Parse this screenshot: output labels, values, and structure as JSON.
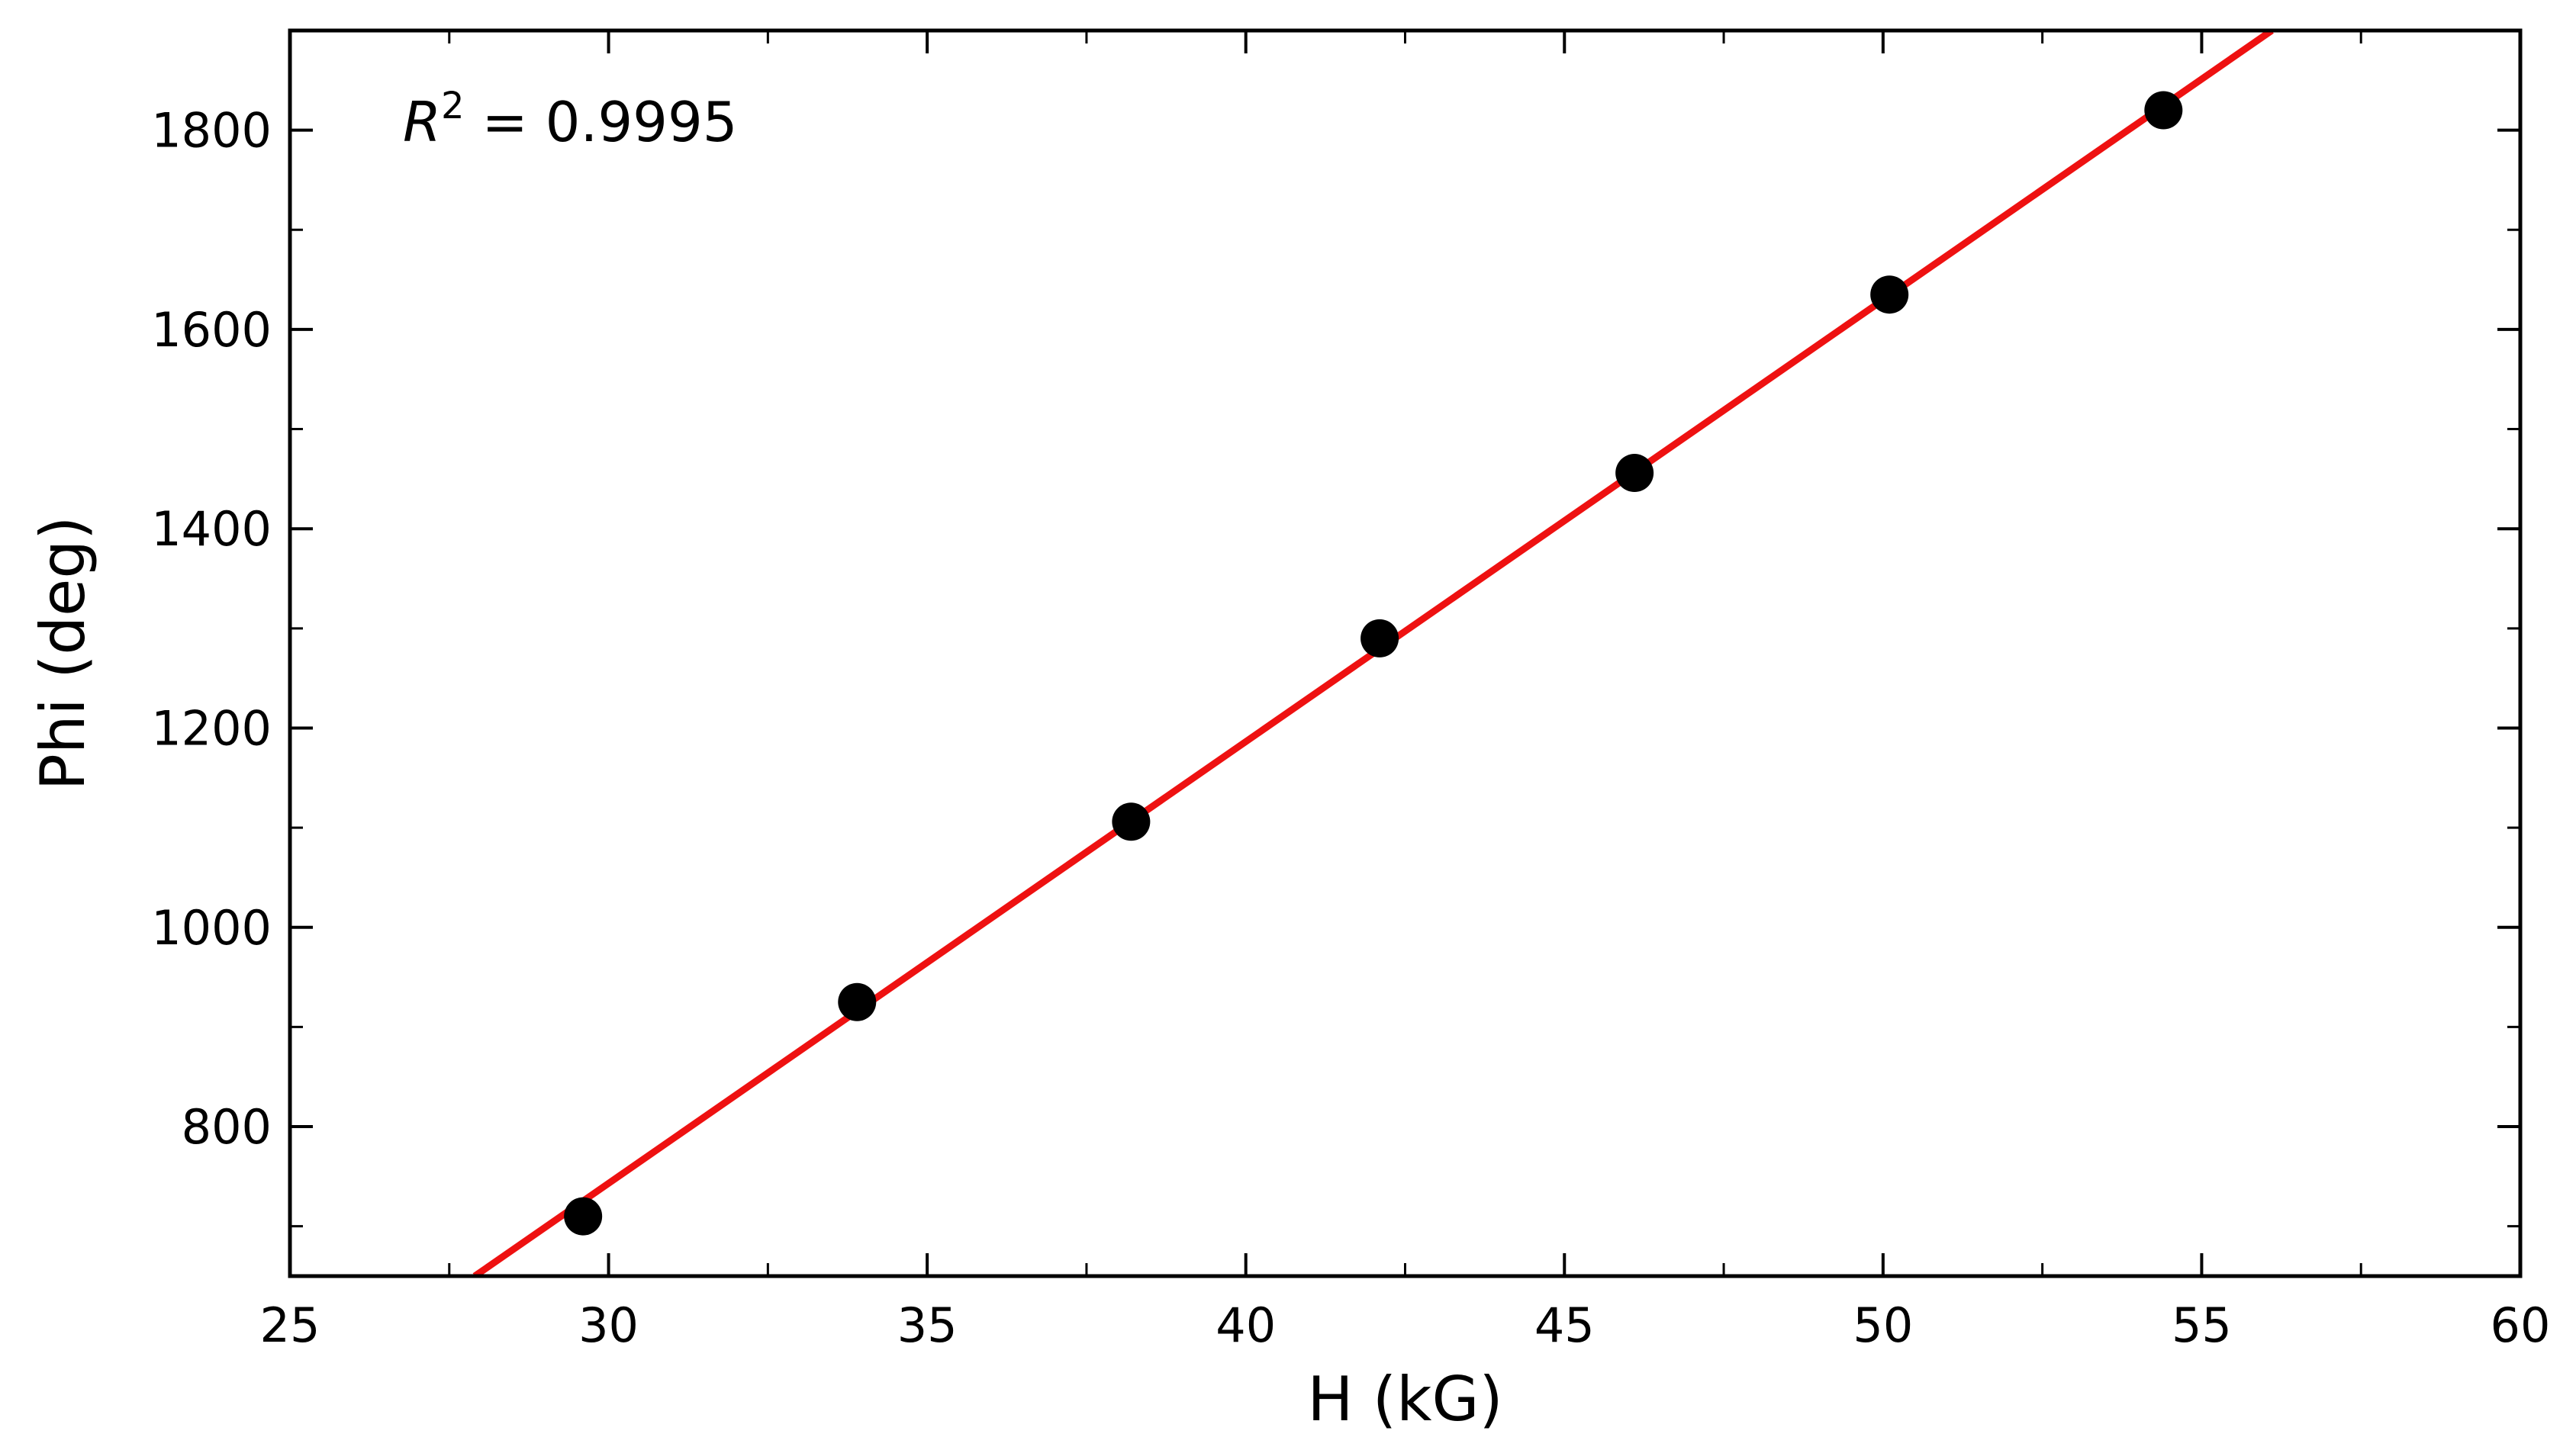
{
  "chart_data": {
    "type": "scatter",
    "xlabel": "H (kG)",
    "ylabel": "Phi (deg)",
    "xlim": [
      25,
      60
    ],
    "ylim": [
      650,
      1900
    ],
    "x_ticks": [
      25,
      30,
      35,
      40,
      45,
      50,
      55,
      60
    ],
    "y_ticks": [
      800,
      1000,
      1200,
      1400,
      1600,
      1800
    ],
    "x_minor_step": 2.5,
    "y_minor_step": 100,
    "grid": false,
    "legend": "none",
    "annotation": {
      "symbol": "R",
      "superscript": "2",
      "text": " = 0.9995",
      "placement": "top-left"
    },
    "series": [
      {
        "kind": "points",
        "color": "#000000",
        "x": [
          29.6,
          33.9,
          38.2,
          42.1,
          46.1,
          50.1,
          54.4
        ],
        "y": [
          710,
          925,
          1106,
          1290,
          1456,
          1635,
          1820
        ]
      },
      {
        "kind": "fit-line",
        "color": "#ee1111",
        "x": [
          27.9,
          56.1
        ],
        "y": [
          650,
          1900
        ]
      }
    ]
  }
}
